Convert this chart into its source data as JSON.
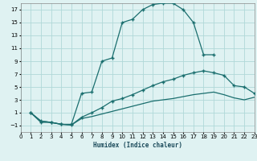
{
  "xlabel": "Humidex (Indice chaleur)",
  "bg_color": "#dff2f2",
  "grid_color": "#b0d8d8",
  "line_color": "#1a6e6e",
  "xlim": [
    0,
    23
  ],
  "ylim": [
    -2,
    18
  ],
  "xticks": [
    0,
    1,
    2,
    3,
    4,
    5,
    6,
    7,
    8,
    9,
    10,
    11,
    12,
    13,
    14,
    15,
    16,
    17,
    18,
    19,
    20,
    21,
    22,
    23
  ],
  "yticks": [
    -1,
    1,
    3,
    5,
    7,
    9,
    11,
    13,
    15,
    17
  ],
  "line1_x": [
    1,
    2,
    3,
    4,
    5,
    6,
    7,
    8,
    9,
    10,
    11,
    12,
    13,
    14,
    15,
    16,
    17,
    18,
    19
  ],
  "line1_y": [
    1,
    -0.5,
    -0.5,
    -0.8,
    -0.8,
    4.0,
    4.2,
    9.0,
    9.5,
    15.0,
    15.5,
    17.0,
    17.8,
    18.0,
    18.0,
    17.0,
    15.0,
    10.0,
    10.0
  ],
  "line2_x": [
    1,
    2,
    3,
    4,
    5,
    6,
    7,
    8,
    9,
    10,
    11,
    12,
    13,
    14,
    15,
    16,
    17,
    18,
    19,
    20,
    21,
    22,
    23
  ],
  "line2_y": [
    1,
    -0.3,
    -0.5,
    -0.8,
    -0.9,
    0.3,
    1.0,
    1.8,
    2.8,
    3.2,
    3.8,
    4.5,
    5.2,
    5.8,
    6.2,
    6.8,
    7.2,
    7.5,
    7.2,
    6.8,
    5.2,
    5.0,
    4.0
  ],
  "line3_x": [
    1,
    2,
    3,
    4,
    5,
    6,
    7,
    8,
    9,
    10,
    11,
    12,
    13,
    14,
    15,
    16,
    17,
    18,
    19,
    20,
    21,
    22,
    23
  ],
  "line3_y": [
    1,
    -0.3,
    -0.5,
    -0.8,
    -0.9,
    0.1,
    0.4,
    0.8,
    1.2,
    1.6,
    2.0,
    2.4,
    2.8,
    3.0,
    3.2,
    3.5,
    3.8,
    4.0,
    4.2,
    3.8,
    3.3,
    3.0,
    3.4
  ],
  "xlabel_color": "#1a4a5a",
  "xlabel_fontsize": 5.5,
  "tick_fontsize": 5,
  "spine_color": "#888888"
}
